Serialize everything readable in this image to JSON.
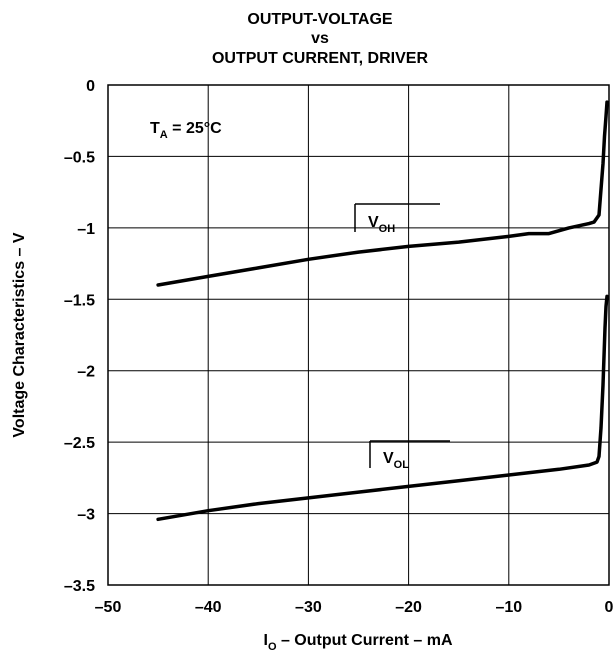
{
  "chart_data": {
    "type": "line",
    "title_lines": [
      "OUTPUT-VOLTAGE",
      "vs",
      "OUTPUT CURRENT, DRIVER"
    ],
    "xlabel": {
      "main": "I",
      "sub": "O",
      "rest": " – Output Current – mA"
    },
    "ylabel": "Voltage Characteristics – V",
    "xlim": [
      -50,
      0
    ],
    "ylim": [
      -3.5,
      0
    ],
    "xticks": [
      -50,
      -40,
      -30,
      -20,
      -10,
      0
    ],
    "yticks": [
      0,
      -0.5,
      -1,
      -1.5,
      -2,
      -2.5,
      -3,
      -3.5
    ],
    "xtick_labels": [
      "–50",
      "–40",
      "–30",
      "–20",
      "–10",
      "0"
    ],
    "ytick_labels": [
      "0",
      "–0.5",
      "–1",
      "–1.5",
      "–2",
      "–2.5",
      "–3",
      "–3.5"
    ],
    "grid": true,
    "annotation": {
      "main": "T",
      "sub": "A",
      "rest": " = 25°C"
    },
    "series": [
      {
        "name": "VOH",
        "label": {
          "main": "V",
          "sub": "OH"
        },
        "x": [
          -45,
          -40,
          -35,
          -30,
          -25,
          -20,
          -15,
          -10,
          -8,
          -6,
          -4,
          -2,
          -1.5,
          -1,
          -0.6,
          -0.45,
          -0.3,
          -0.2
        ],
        "y": [
          -1.4,
          -1.34,
          -1.28,
          -1.22,
          -1.17,
          -1.13,
          -1.1,
          -1.06,
          -1.04,
          -1.04,
          -1.0,
          -0.97,
          -0.96,
          -0.91,
          -0.55,
          -0.36,
          -0.22,
          -0.12
        ]
      },
      {
        "name": "VOL",
        "label": {
          "main": "V",
          "sub": "OL"
        },
        "x": [
          -45,
          -40,
          -35,
          -30,
          -25,
          -20,
          -15,
          -10,
          -5,
          -2,
          -1.2,
          -1,
          -0.8,
          -0.6,
          -0.5,
          -0.4,
          -0.3,
          -0.2
        ],
        "y": [
          -3.04,
          -2.98,
          -2.93,
          -2.89,
          -2.85,
          -2.81,
          -2.77,
          -2.73,
          -2.69,
          -2.66,
          -2.64,
          -2.6,
          -2.4,
          -2.1,
          -1.9,
          -1.7,
          -1.55,
          -1.48
        ]
      }
    ]
  }
}
